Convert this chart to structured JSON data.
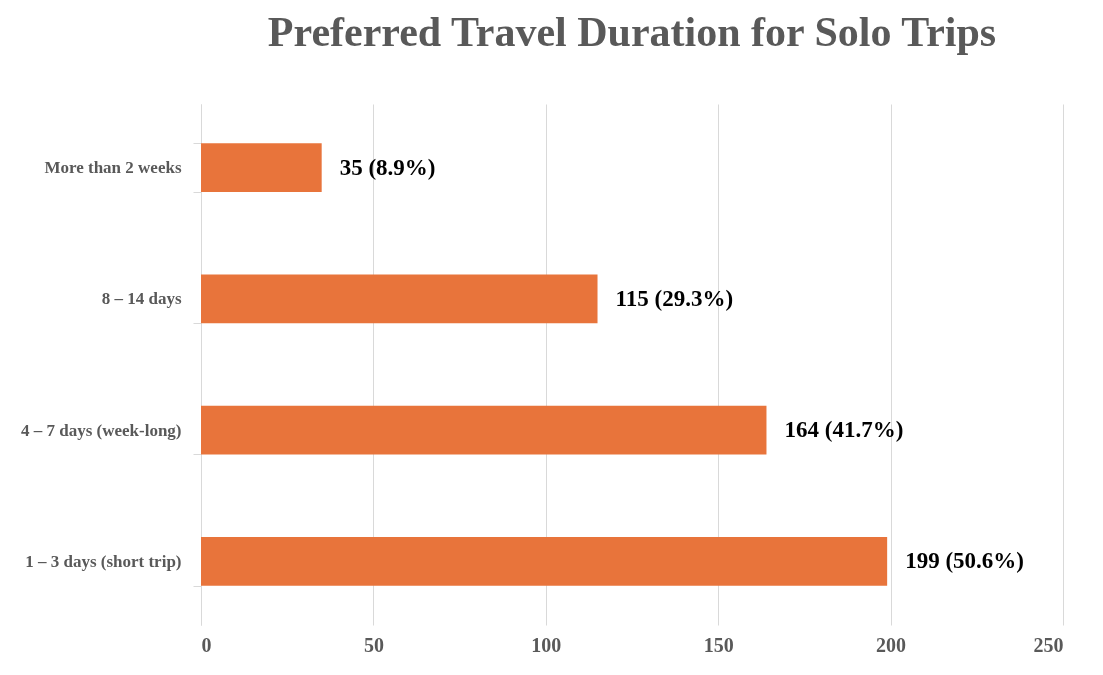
{
  "chart_data": {
    "type": "bar",
    "orientation": "horizontal",
    "title": "Preferred Travel Duration for Solo Trips",
    "categories": [
      "More than 2 weeks",
      "8 – 14 days",
      "4 – 7 days (week-long)",
      "1 – 3 days (short trip)"
    ],
    "values": [
      35,
      115,
      164,
      199
    ],
    "value_labels": [
      "35 (8.9%)",
      "115 (29.3%)",
      "164 (41.7%)",
      "199 (50.6%)"
    ],
    "color": "#e8743b",
    "xlim": [
      0,
      250
    ],
    "xticks": [
      0,
      50,
      100,
      150,
      200,
      250
    ],
    "grid": "x"
  }
}
